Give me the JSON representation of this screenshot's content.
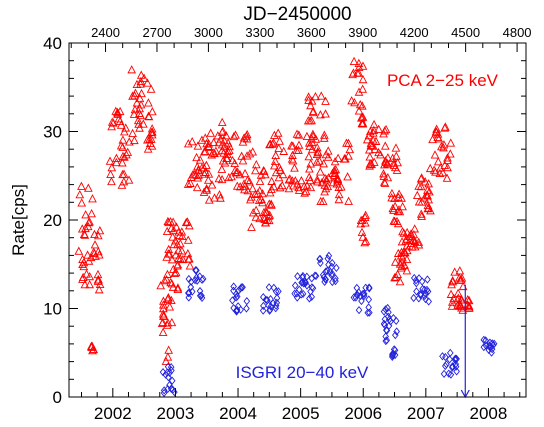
{
  "chart_data": {
    "type": "scatter",
    "ylabel": "Rate[cps]",
    "top_axis_label": "JD−2450000",
    "xlim": [
      2001.3,
      2008.6
    ],
    "ylim": [
      0,
      40
    ],
    "top_xlim": [
      2187,
      4852
    ],
    "x_ticks": [
      "2002",
      "2003",
      "2004",
      "2005",
      "2006",
      "2007",
      "2008"
    ],
    "y_ticks": [
      "0",
      "10",
      "20",
      "30",
      "40"
    ],
    "top_ticks": [
      "2400",
      "2700",
      "3000",
      "3300",
      "3600",
      "3900",
      "4200",
      "4500",
      "4800"
    ],
    "series": [
      {
        "name": "PCA 2−25 keV",
        "color": "#ff0000",
        "marker": "triangle",
        "clusters": [
          {
            "x": [
              2001.45,
              2001.7
            ],
            "y": [
              12.5,
              24.5
            ]
          },
          {
            "x": [
              2001.7,
              2001.8
            ],
            "y": [
              12.0,
              19.0
            ]
          },
          {
            "x": [
              2001.65,
              2001.7
            ],
            "y": [
              5.0,
              6.0
            ]
          },
          {
            "x": [
              2001.95,
              2002.35
            ],
            "y": [
              23.0,
              33.0
            ]
          },
          {
            "x": [
              2002.3,
              2002.5
            ],
            "y": [
              30.0,
              37.5
            ]
          },
          {
            "x": [
              2002.55,
              2002.65
            ],
            "y": [
              27.5,
              36.0
            ]
          },
          {
            "x": [
              2002.75,
              2002.95
            ],
            "y": [
              4.0,
              14.0
            ]
          },
          {
            "x": [
              2002.85,
              2003.05
            ],
            "y": [
              9.5,
              20.0
            ]
          },
          {
            "x": [
              2003.0,
              2003.25
            ],
            "y": [
              14.5,
              20.0
            ]
          },
          {
            "x": [
              2003.2,
              2003.5
            ],
            "y": [
              23.0,
              29.0
            ]
          },
          {
            "x": [
              2003.45,
              2003.75
            ],
            "y": [
              22.0,
              30.0
            ]
          },
          {
            "x": [
              2003.7,
              2003.85
            ],
            "y": [
              26.0,
              31.0
            ]
          },
          {
            "x": [
              2003.85,
              2004.15
            ],
            "y": [
              23.0,
              30.0
            ]
          },
          {
            "x": [
              2004.15,
              2004.45
            ],
            "y": [
              19.0,
              28.0
            ]
          },
          {
            "x": [
              2004.4,
              2004.55
            ],
            "y": [
              19.5,
              22.0
            ]
          },
          {
            "x": [
              2004.5,
              2004.75
            ],
            "y": [
              23.0,
              30.0
            ]
          },
          {
            "x": [
              2004.8,
              2005.2
            ],
            "y": [
              23.0,
              30.0
            ]
          },
          {
            "x": [
              2005.1,
              2005.4
            ],
            "y": [
              26.0,
              34.0
            ]
          },
          {
            "x": [
              2005.25,
              2005.45
            ],
            "y": [
              22.0,
              28.0
            ]
          },
          {
            "x": [
              2005.5,
              2005.8
            ],
            "y": [
              22.0,
              29.0
            ]
          },
          {
            "x": [
              2005.8,
              2006.0
            ],
            "y": [
              30.0,
              38.0
            ]
          },
          {
            "x": [
              2005.95,
              2006.05
            ],
            "y": [
              17.0,
              20.5
            ]
          },
          {
            "x": [
              2006.05,
              2006.3
            ],
            "y": [
              26.0,
              31.0
            ]
          },
          {
            "x": [
              2006.3,
              2006.55
            ],
            "y": [
              24.0,
              30.5
            ]
          },
          {
            "x": [
              2006.45,
              2006.65
            ],
            "y": [
              19.0,
              23.0
            ]
          },
          {
            "x": [
              2006.5,
              2006.7
            ],
            "y": [
              12.5,
              18.0
            ]
          },
          {
            "x": [
              2006.6,
              2006.9
            ],
            "y": [
              16.0,
              19.0
            ]
          },
          {
            "x": [
              2006.85,
              2007.1
            ],
            "y": [
              20.0,
              26.0
            ]
          },
          {
            "x": [
              2007.1,
              2007.4
            ],
            "y": [
              24.0,
              30.5
            ]
          },
          {
            "x": [
              2007.4,
              2007.6
            ],
            "y": [
              10.0,
              14.5
            ]
          },
          {
            "x": [
              2007.5,
              2007.7
            ],
            "y": [
              9.5,
              11.0
            ]
          }
        ]
      },
      {
        "name": "ISGRI 20−40 keV",
        "color": "#2222dd",
        "marker": "diamond",
        "clusters": [
          {
            "x": [
              2002.8,
              2003.0
            ],
            "y": [
              0.0,
              3.5
            ]
          },
          {
            "x": [
              2003.2,
              2003.45
            ],
            "y": [
              11.0,
              14.5
            ]
          },
          {
            "x": [
              2003.9,
              2004.15
            ],
            "y": [
              9.5,
              12.5
            ]
          },
          {
            "x": [
              2004.4,
              2004.65
            ],
            "y": [
              9.5,
              12.5
            ]
          },
          {
            "x": [
              2004.9,
              2005.25
            ],
            "y": [
              11.0,
              14.0
            ]
          },
          {
            "x": [
              2005.3,
              2005.6
            ],
            "y": [
              12.5,
              16.0
            ]
          },
          {
            "x": [
              2005.85,
              2006.1
            ],
            "y": [
              9.5,
              12.5
            ]
          },
          {
            "x": [
              2006.3,
              2006.55
            ],
            "y": [
              6.0,
              10.5
            ]
          },
          {
            "x": [
              2006.45,
              2006.55
            ],
            "y": [
              4.5,
              5.5
            ]
          },
          {
            "x": [
              2006.8,
              2007.05
            ],
            "y": [
              10.5,
              13.5
            ]
          },
          {
            "x": [
              2007.25,
              2007.5
            ],
            "y": [
              2.5,
              5.0
            ]
          },
          {
            "x": [
              2007.9,
              2008.1
            ],
            "y": [
              5.0,
              6.5
            ]
          }
        ],
        "upper_limit": {
          "x": 2007.63,
          "y_from": 12.7,
          "y_to": 0
        }
      }
    ]
  }
}
